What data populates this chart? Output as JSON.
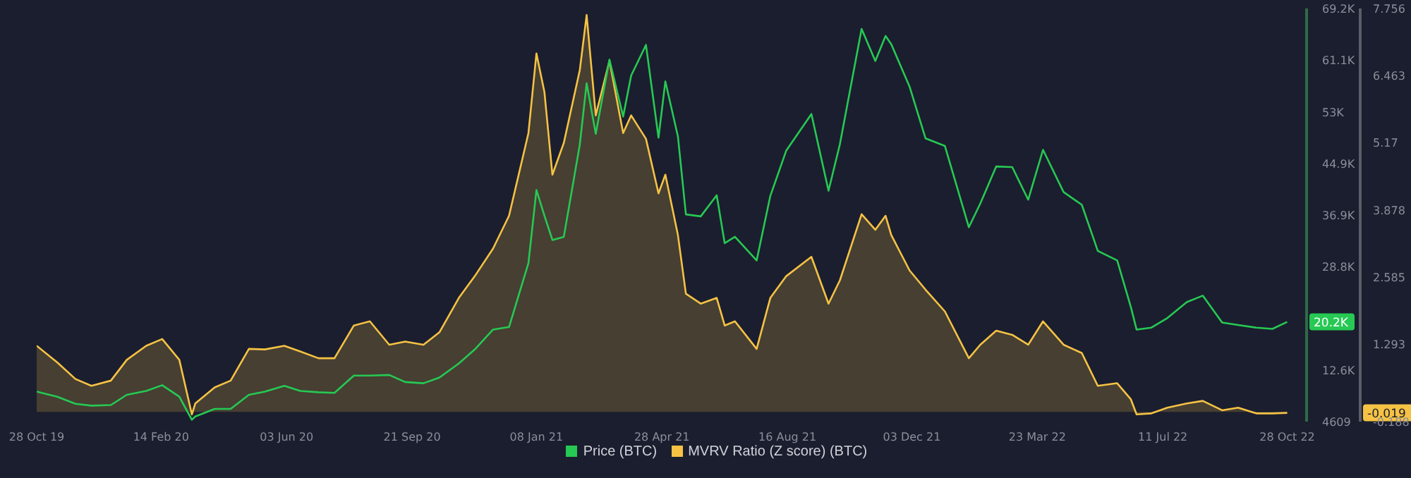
{
  "chart_data": {
    "type": "line",
    "legend": "bottom",
    "x": [
      "2019-10-28",
      "2019-11-15",
      "2019-12-01",
      "2019-12-15",
      "2020-01-01",
      "2020-01-15",
      "2020-02-01",
      "2020-02-15",
      "2020-03-01",
      "2020-03-12",
      "2020-03-15",
      "2020-04-01",
      "2020-04-15",
      "2020-05-01",
      "2020-05-15",
      "2020-06-01",
      "2020-06-15",
      "2020-07-01",
      "2020-07-15",
      "2020-08-01",
      "2020-08-15",
      "2020-09-01",
      "2020-09-15",
      "2020-10-01",
      "2020-10-15",
      "2020-11-01",
      "2020-11-15",
      "2020-12-01",
      "2020-12-15",
      "2021-01-01",
      "2021-01-08",
      "2021-01-15",
      "2021-01-22",
      "2021-02-01",
      "2021-02-15",
      "2021-02-21",
      "2021-03-01",
      "2021-03-13",
      "2021-03-25",
      "2021-04-01",
      "2021-04-14",
      "2021-04-25",
      "2021-05-01",
      "2021-05-12",
      "2021-05-19",
      "2021-06-01",
      "2021-06-15",
      "2021-06-22",
      "2021-07-01",
      "2021-07-20",
      "2021-08-01",
      "2021-08-15",
      "2021-09-06",
      "2021-09-21",
      "2021-10-01",
      "2021-10-20",
      "2021-11-01",
      "2021-11-10",
      "2021-11-15",
      "2021-12-01",
      "2021-12-15",
      "2022-01-01",
      "2022-01-22",
      "2022-02-01",
      "2022-02-15",
      "2022-03-01",
      "2022-03-15",
      "2022-03-28",
      "2022-04-15",
      "2022-05-01",
      "2022-05-15",
      "2022-06-01",
      "2022-06-13",
      "2022-06-18",
      "2022-07-01",
      "2022-07-15",
      "2022-08-01",
      "2022-08-15",
      "2022-09-01",
      "2022-09-15",
      "2022-10-01",
      "2022-10-15",
      "2022-10-28"
    ],
    "series": [
      {
        "name": "Price (BTC)",
        "color": "#26c953",
        "values": [
          9300,
          8500,
          7400,
          7100,
          7200,
          8800,
          9400,
          10300,
          8500,
          4900,
          5400,
          6600,
          6600,
          8800,
          9300,
          10200,
          9400,
          9200,
          9100,
          11800,
          11800,
          11900,
          10800,
          10600,
          11500,
          13700,
          15900,
          19000,
          19400,
          29400,
          40800,
          36800,
          33000,
          33500,
          47900,
          57500,
          49600,
          61200,
          52300,
          58700,
          63500,
          49000,
          57800,
          49200,
          37000,
          36700,
          40000,
          32500,
          33500,
          29800,
          39900,
          47000,
          52700,
          40700,
          48000,
          66000,
          61000,
          64900,
          63600,
          57000,
          48900,
          47700,
          35000,
          38700,
          44500,
          44400,
          39300,
          47100,
          40500,
          38500,
          31300,
          29800,
          22500,
          19000,
          19300,
          20800,
          23300,
          24300,
          20100,
          19700,
          19300,
          19100,
          20200
        ]
      },
      {
        "name": "MVRV Ratio (Z score) (BTC)",
        "type": "area",
        "axis": "y2",
        "color": "#f5c244",
        "values": [
          1.27,
          0.95,
          0.63,
          0.5,
          0.6,
          1.0,
          1.27,
          1.4,
          1.0,
          -0.05,
          0.16,
          0.47,
          0.6,
          1.21,
          1.2,
          1.27,
          1.16,
          1.03,
          1.03,
          1.66,
          1.74,
          1.29,
          1.35,
          1.29,
          1.53,
          2.19,
          2.61,
          3.14,
          3.77,
          5.36,
          6.89,
          6.15,
          4.56,
          5.17,
          6.57,
          7.63,
          5.7,
          6.75,
          5.36,
          5.7,
          5.25,
          4.2,
          4.56,
          3.4,
          2.27,
          2.08,
          2.19,
          1.66,
          1.74,
          1.21,
          2.19,
          2.61,
          2.98,
          2.08,
          2.53,
          3.8,
          3.5,
          3.77,
          3.4,
          2.72,
          2.35,
          1.93,
          1.03,
          1.29,
          1.56,
          1.48,
          1.29,
          1.74,
          1.29,
          1.13,
          0.5,
          0.55,
          0.24,
          -0.05,
          -0.03,
          0.08,
          0.16,
          0.21,
          0.03,
          0.08,
          -0.03,
          -0.03,
          -0.02
        ]
      }
    ],
    "xlim": [
      "2019-10-28",
      "2022-11-14"
    ],
    "xticks": [
      {
        "value": "2019-10-28",
        "label": "28 Oct 19"
      },
      {
        "value": "2020-02-14",
        "label": "14 Feb 20"
      },
      {
        "value": "2020-06-03",
        "label": "03 Jun 20"
      },
      {
        "value": "2020-09-21",
        "label": "21 Sep 20"
      },
      {
        "value": "2021-01-08",
        "label": "08 Jan 21"
      },
      {
        "value": "2021-04-28",
        "label": "28 Apr 21"
      },
      {
        "value": "2021-08-16",
        "label": "16 Aug 21"
      },
      {
        "value": "2021-12-03",
        "label": "03 Dec 21"
      },
      {
        "value": "2022-03-23",
        "label": "23 Mar 22"
      },
      {
        "value": "2022-07-11",
        "label": "11 Jul 22"
      },
      {
        "value": "2022-10-28",
        "label": "28 Oct 22"
      }
    ],
    "ylim": [
      4609,
      69200
    ],
    "yticks": [
      4609,
      {
        "value": 12600,
        "label": "12.6K"
      },
      {
        "value": 28800,
        "label": "28.8K"
      },
      {
        "value": 36900,
        "label": "36.9K"
      },
      {
        "value": 44900,
        "label": "44.9K"
      },
      {
        "value": 53000,
        "label": "53K"
      },
      {
        "value": 61100,
        "label": "61.1K"
      },
      {
        "value": 69200,
        "label": "69.2K"
      }
    ],
    "y2lim": [
      -0.188,
      7.756
    ],
    "y2ticks": [
      -0.188,
      1.293,
      2.585,
      3.878,
      5.17,
      6.463,
      7.756
    ],
    "annotations": [
      "20.2K",
      "-0.019"
    ]
  }
}
